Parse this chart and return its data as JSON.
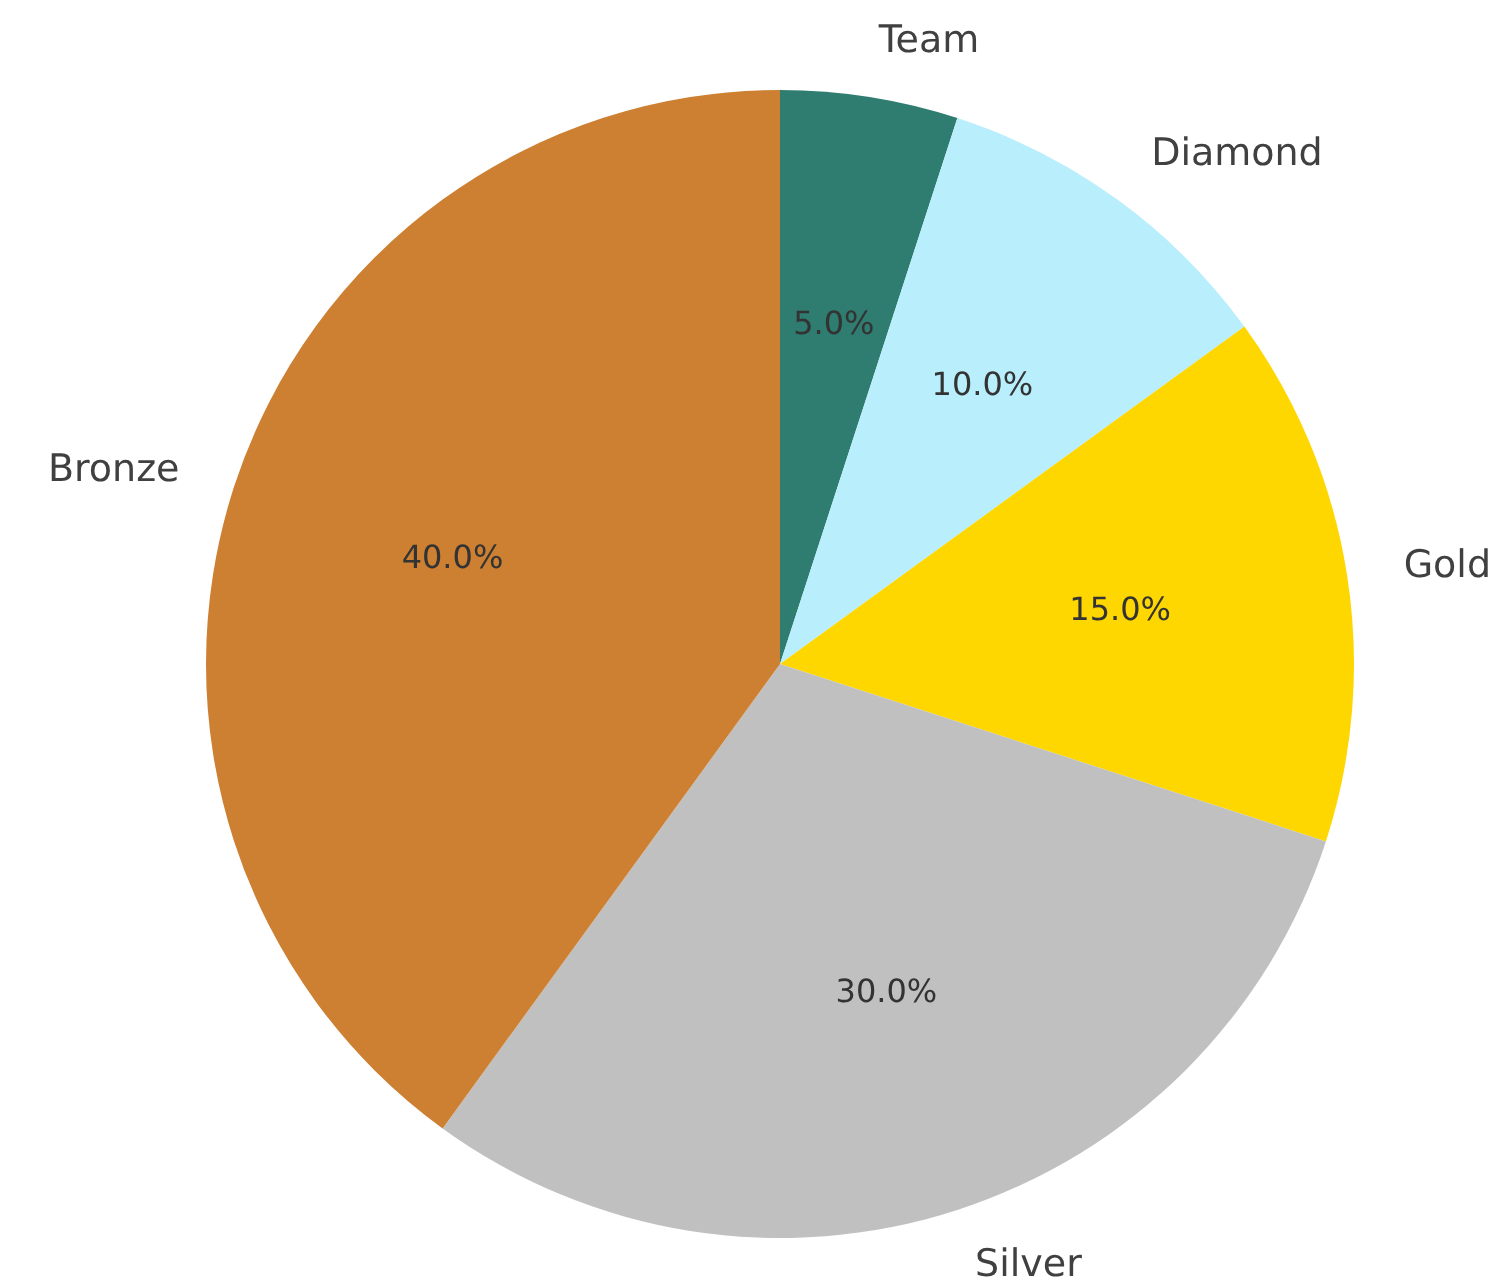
{
  "chart_data": {
    "type": "pie",
    "categories": [
      "Team",
      "Diamond",
      "Gold",
      "Silver",
      "Bronze"
    ],
    "values": [
      5,
      10,
      15,
      30,
      40
    ],
    "colors": [
      "#2f7d70",
      "#b9eefc",
      "#ffd700",
      "#c0c0c0",
      "#cd7f32"
    ],
    "value_labels": [
      "5.0%",
      "10.0%",
      "15.0%",
      "30.0%",
      "40.0%"
    ]
  }
}
